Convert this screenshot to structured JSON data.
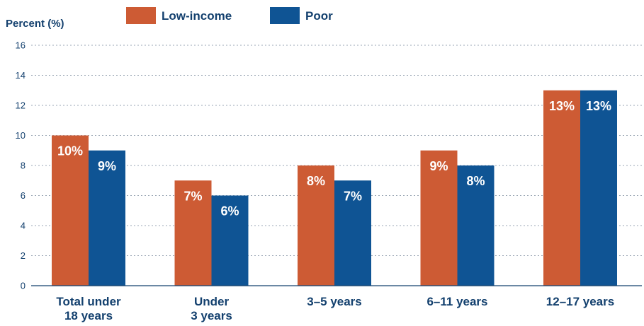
{
  "chart_data": {
    "type": "bar",
    "ylabel": "Percent (%)",
    "xlabel": "",
    "ylim": [
      0,
      16
    ],
    "yticks": [
      0,
      2,
      4,
      6,
      8,
      10,
      12,
      14,
      16
    ],
    "categories": [
      [
        "Total under",
        "18 years"
      ],
      [
        "Under",
        "3 years"
      ],
      [
        "3–5 years"
      ],
      [
        "6–11 years"
      ],
      [
        "12–17 years"
      ]
    ],
    "series": [
      {
        "name": "Low-income",
        "color": "#cd5b34",
        "values": [
          10,
          7,
          8,
          9,
          13
        ],
        "labels": [
          "10%",
          "7%",
          "8%",
          "9%",
          "13%"
        ]
      },
      {
        "name": "Poor",
        "color": "#0f5494",
        "values": [
          9,
          6,
          7,
          8,
          13
        ],
        "labels": [
          "9%",
          "6%",
          "7%",
          "8%",
          "13%"
        ]
      }
    ],
    "grid": true,
    "legend_position": "top-center"
  }
}
